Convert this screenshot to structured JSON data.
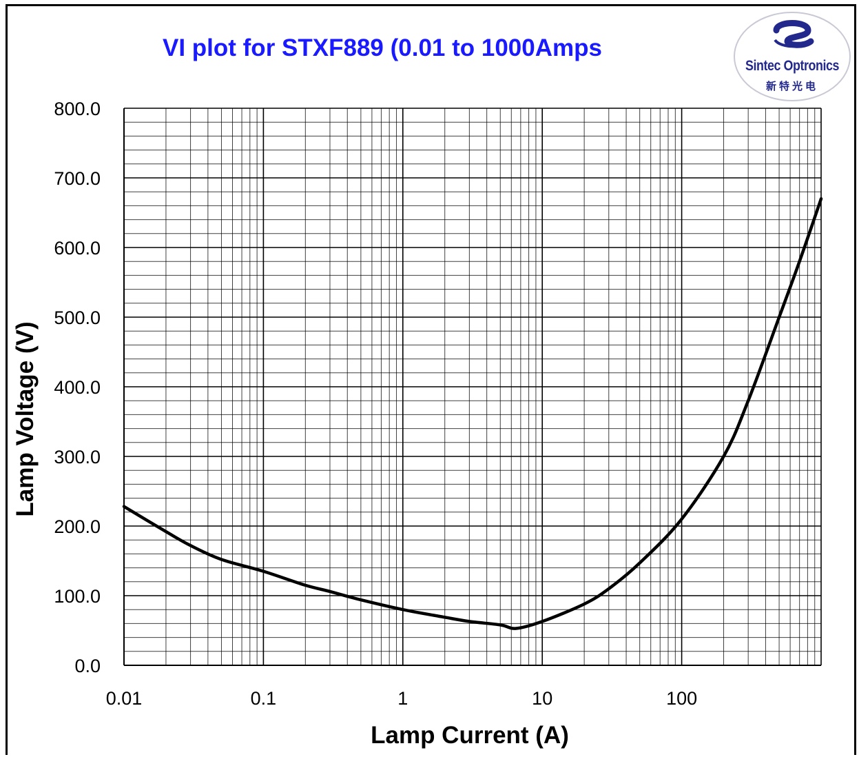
{
  "chart_data": {
    "type": "line",
    "title": "VI plot for STXF889 (0.01 to 1000Amps",
    "xlabel": "Lamp Current (A)",
    "ylabel": "Lamp Voltage (V)",
    "x_scale": "log",
    "xlim": [
      0.01,
      1000
    ],
    "ylim": [
      0,
      800
    ],
    "x_ticks": [
      "0.01",
      "0.1",
      "1",
      "10",
      "100"
    ],
    "y_ticks": [
      "0.0",
      "100.0",
      "200.0",
      "300.0",
      "400.0",
      "500.0",
      "600.0",
      "700.0",
      "800.0"
    ],
    "grid": true,
    "legend": "none",
    "series": [
      {
        "x": [
          0.01,
          0.02,
          0.03,
          0.05,
          0.1,
          0.2,
          0.3,
          0.5,
          1,
          2,
          3,
          5,
          6.5,
          10,
          20,
          30,
          50,
          100,
          200,
          300,
          500,
          700,
          1000
        ],
        "y": [
          228,
          192,
          172,
          152,
          135,
          115,
          106,
          94,
          80,
          69,
          63,
          58,
          53,
          63,
          88,
          110,
          147,
          210,
          300,
          380,
          500,
          580,
          670
        ]
      }
    ],
    "line_color": "#000000"
  },
  "logo": {
    "name": "Sintec Optronics",
    "name_cn": "新特光电",
    "color": "#22288c"
  },
  "colors": {
    "title": "#1a1aff",
    "grid": "#000000",
    "background": "#ffffff"
  }
}
